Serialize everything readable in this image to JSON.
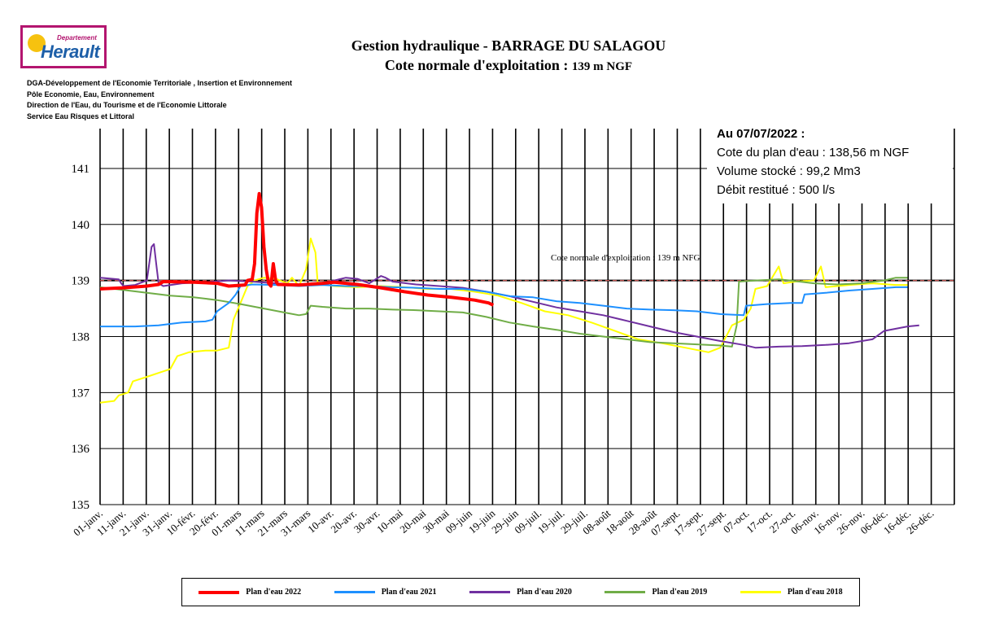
{
  "header": {
    "logo": {
      "small": "Departement",
      "name": "Herault"
    },
    "orgs": [
      "DGA-Développement de l'Economie Territoriale , Insertion et Environnement",
      "Pôle Economie, Eau, Environnement",
      "Direction de l'Eau, du Tourisme et de l'Economie Littorale",
      "Service Eau Risques et Littoral"
    ],
    "title_line1": "Gestion hydraulique - BARRAGE DU SALAGOU",
    "title_line2_main": "Cote normale d'exploitation : ",
    "title_line2_small": "139 m NGF"
  },
  "info": {
    "date_line": "Au 07/07/2022 :",
    "level_line": "Cote du plan d'eau : 138,56 m NGF",
    "volume_line": "Volume stocké : 99,2 Mm3",
    "flow_line": "Débit restitué : 500 l/s"
  },
  "colors": {
    "2022": "#ff0000",
    "2021": "#1e90ff",
    "2020": "#7030a0",
    "2019": "#70ad47",
    "2018": "#ffff00",
    "reference": "#000000",
    "reference_dash": "#c0504d"
  },
  "chart_data": {
    "type": "line",
    "title": "Gestion hydraulique - BARRAGE DU SALAGOU",
    "xlabel": "",
    "ylabel": "",
    "ylim": [
      135,
      141.9
    ],
    "yticks": [
      135,
      136,
      137,
      138,
      139,
      140,
      141
    ],
    "x_domain_days": [
      0,
      365
    ],
    "categories": [
      "01-janv.",
      "11-janv.",
      "21-janv.",
      "31-janv.",
      "10-févr.",
      "20-févr.",
      "01-mars",
      "11-mars",
      "21-mars",
      "31-mars",
      "10-avr.",
      "20-avr.",
      "30-avr.",
      "10-mai",
      "20-mai",
      "30-mai",
      "09-juin",
      "19-juin",
      "29-juin",
      "09-juil.",
      "19-juil.",
      "29-juil.",
      "08-août",
      "18-août",
      "28-août",
      "07-sept.",
      "17-sept.",
      "27-sept.",
      "07-oct.",
      "17-oct.",
      "27-oct.",
      "06-nov.",
      "16-nov.",
      "26-nov.",
      "06-déc.",
      "16-déc.",
      "26-déc."
    ],
    "reference": {
      "value": 139,
      "label": "Cote normale d'exploitation : 139 m NFG"
    },
    "series": [
      {
        "name": "Plan d'eau 2022",
        "key": "2022",
        "points": [
          [
            0,
            138.85
          ],
          [
            10,
            138.87
          ],
          [
            20,
            138.9
          ],
          [
            25,
            138.93
          ],
          [
            27,
            138.98
          ],
          [
            40,
            138.97
          ],
          [
            50,
            138.95
          ],
          [
            55,
            138.9
          ],
          [
            62,
            138.92
          ],
          [
            63,
            139.0
          ],
          [
            65,
            139.02
          ],
          [
            66,
            139.3
          ],
          [
            67,
            140.2
          ],
          [
            68,
            140.55
          ],
          [
            69,
            140.3
          ],
          [
            70,
            139.6
          ],
          [
            71,
            139.2
          ],
          [
            72,
            138.95
          ],
          [
            73,
            138.9
          ],
          [
            74,
            139.3
          ],
          [
            75,
            139.0
          ],
          [
            76,
            138.93
          ],
          [
            85,
            138.92
          ],
          [
            95,
            138.95
          ],
          [
            100,
            138.97
          ],
          [
            110,
            138.93
          ],
          [
            120,
            138.87
          ],
          [
            130,
            138.8
          ],
          [
            140,
            138.74
          ],
          [
            150,
            138.7
          ],
          [
            160,
            138.65
          ],
          [
            166,
            138.6
          ],
          [
            168,
            138.56
          ]
        ]
      },
      {
        "name": "Plan d'eau 2021",
        "key": "2021",
        "points": [
          [
            0,
            138.18
          ],
          [
            5,
            138.18
          ],
          [
            15,
            138.18
          ],
          [
            25,
            138.2
          ],
          [
            35,
            138.25
          ],
          [
            45,
            138.27
          ],
          [
            48,
            138.3
          ],
          [
            50,
            138.45
          ],
          [
            55,
            138.6
          ],
          [
            58,
            138.75
          ],
          [
            60,
            138.9
          ],
          [
            65,
            138.93
          ],
          [
            75,
            138.92
          ],
          [
            85,
            138.9
          ],
          [
            95,
            138.92
          ],
          [
            105,
            138.9
          ],
          [
            115,
            138.9
          ],
          [
            125,
            138.88
          ],
          [
            135,
            138.87
          ],
          [
            145,
            138.85
          ],
          [
            155,
            138.85
          ],
          [
            165,
            138.8
          ],
          [
            175,
            138.72
          ],
          [
            185,
            138.7
          ],
          [
            195,
            138.63
          ],
          [
            205,
            138.6
          ],
          [
            215,
            138.55
          ],
          [
            225,
            138.5
          ],
          [
            235,
            138.48
          ],
          [
            245,
            138.47
          ],
          [
            255,
            138.45
          ],
          [
            265,
            138.4
          ],
          [
            275,
            138.38
          ],
          [
            276,
            138.55
          ],
          [
            285,
            138.58
          ],
          [
            295,
            138.6
          ],
          [
            300,
            138.6
          ],
          [
            301,
            138.75
          ],
          [
            310,
            138.78
          ],
          [
            320,
            138.82
          ],
          [
            330,
            138.85
          ],
          [
            340,
            138.88
          ],
          [
            345,
            138.88
          ]
        ]
      },
      {
        "name": "Plan d'eau 2020",
        "key": "2020",
        "points": [
          [
            0,
            139.05
          ],
          [
            8,
            139.02
          ],
          [
            9,
            138.95
          ],
          [
            10,
            138.9
          ],
          [
            15,
            138.92
          ],
          [
            20,
            139.0
          ],
          [
            22,
            139.6
          ],
          [
            23,
            139.65
          ],
          [
            24,
            139.3
          ],
          [
            25,
            138.95
          ],
          [
            27,
            138.9
          ],
          [
            35,
            138.95
          ],
          [
            45,
            138.97
          ],
          [
            55,
            139.0
          ],
          [
            65,
            138.98
          ],
          [
            75,
            138.95
          ],
          [
            85,
            138.93
          ],
          [
            95,
            138.95
          ],
          [
            105,
            139.05
          ],
          [
            110,
            139.03
          ],
          [
            115,
            138.95
          ],
          [
            120,
            139.08
          ],
          [
            122,
            139.05
          ],
          [
            125,
            138.98
          ],
          [
            135,
            138.93
          ],
          [
            145,
            138.9
          ],
          [
            155,
            138.87
          ],
          [
            165,
            138.8
          ],
          [
            175,
            138.72
          ],
          [
            185,
            138.62
          ],
          [
            195,
            138.52
          ],
          [
            205,
            138.45
          ],
          [
            215,
            138.38
          ],
          [
            225,
            138.28
          ],
          [
            235,
            138.18
          ],
          [
            245,
            138.08
          ],
          [
            255,
            138.0
          ],
          [
            265,
            137.92
          ],
          [
            275,
            137.85
          ],
          [
            280,
            137.8
          ],
          [
            290,
            137.82
          ],
          [
            300,
            137.83
          ],
          [
            310,
            137.85
          ],
          [
            320,
            137.88
          ],
          [
            330,
            137.95
          ],
          [
            335,
            138.1
          ],
          [
            345,
            138.18
          ],
          [
            350,
            138.2
          ]
        ]
      },
      {
        "name": "Plan d'eau 2019",
        "key": "2019",
        "points": [
          [
            0,
            138.88
          ],
          [
            10,
            138.83
          ],
          [
            20,
            138.78
          ],
          [
            30,
            138.73
          ],
          [
            40,
            138.7
          ],
          [
            50,
            138.65
          ],
          [
            60,
            138.58
          ],
          [
            70,
            138.5
          ],
          [
            80,
            138.42
          ],
          [
            85,
            138.38
          ],
          [
            88,
            138.4
          ],
          [
            90,
            138.55
          ],
          [
            95,
            138.53
          ],
          [
            105,
            138.5
          ],
          [
            115,
            138.5
          ],
          [
            125,
            138.48
          ],
          [
            135,
            138.47
          ],
          [
            145,
            138.45
          ],
          [
            155,
            138.43
          ],
          [
            165,
            138.35
          ],
          [
            175,
            138.25
          ],
          [
            185,
            138.18
          ],
          [
            195,
            138.12
          ],
          [
            205,
            138.05
          ],
          [
            215,
            138.0
          ],
          [
            225,
            137.95
          ],
          [
            235,
            137.9
          ],
          [
            245,
            137.88
          ],
          [
            255,
            137.86
          ],
          [
            265,
            137.84
          ],
          [
            270,
            137.82
          ],
          [
            272,
            138.2
          ],
          [
            273,
            138.98
          ],
          [
            280,
            139.0
          ],
          [
            290,
            139.02
          ],
          [
            295,
            139.0
          ],
          [
            305,
            138.95
          ],
          [
            315,
            138.93
          ],
          [
            325,
            138.95
          ],
          [
            335,
            139.0
          ],
          [
            340,
            139.05
          ],
          [
            345,
            139.05
          ]
        ]
      },
      {
        "name": "Plan d'eau 2018",
        "key": "2018",
        "points": [
          [
            0,
            136.82
          ],
          [
            6,
            136.85
          ],
          [
            8,
            136.95
          ],
          [
            12,
            137.0
          ],
          [
            14,
            137.2
          ],
          [
            20,
            137.28
          ],
          [
            25,
            137.35
          ],
          [
            30,
            137.42
          ],
          [
            33,
            137.65
          ],
          [
            38,
            137.72
          ],
          [
            45,
            137.75
          ],
          [
            50,
            137.75
          ],
          [
            55,
            137.8
          ],
          [
            57,
            138.3
          ],
          [
            60,
            138.6
          ],
          [
            63,
            138.9
          ],
          [
            66,
            139.0
          ],
          [
            70,
            139.05
          ],
          [
            75,
            139.03
          ],
          [
            80,
            138.95
          ],
          [
            82,
            139.05
          ],
          [
            85,
            138.9
          ],
          [
            88,
            139.2
          ],
          [
            90,
            139.75
          ],
          [
            92,
            139.5
          ],
          [
            93,
            138.95
          ],
          [
            100,
            138.9
          ],
          [
            110,
            138.88
          ],
          [
            120,
            138.9
          ],
          [
            130,
            138.88
          ],
          [
            140,
            138.85
          ],
          [
            150,
            138.85
          ],
          [
            160,
            138.8
          ],
          [
            170,
            138.73
          ],
          [
            180,
            138.6
          ],
          [
            190,
            138.45
          ],
          [
            200,
            138.38
          ],
          [
            210,
            138.25
          ],
          [
            220,
            138.1
          ],
          [
            230,
            137.95
          ],
          [
            240,
            137.88
          ],
          [
            250,
            137.8
          ],
          [
            260,
            137.72
          ],
          [
            265,
            137.8
          ],
          [
            270,
            138.2
          ],
          [
            275,
            138.3
          ],
          [
            278,
            138.5
          ],
          [
            280,
            138.85
          ],
          [
            285,
            138.9
          ],
          [
            290,
            139.25
          ],
          [
            292,
            138.95
          ],
          [
            297,
            138.98
          ],
          [
            305,
            139.0
          ],
          [
            308,
            139.25
          ],
          [
            310,
            138.88
          ],
          [
            315,
            138.9
          ],
          [
            320,
            138.92
          ],
          [
            330,
            138.95
          ],
          [
            340,
            138.92
          ],
          [
            345,
            138.92
          ]
        ]
      }
    ]
  }
}
